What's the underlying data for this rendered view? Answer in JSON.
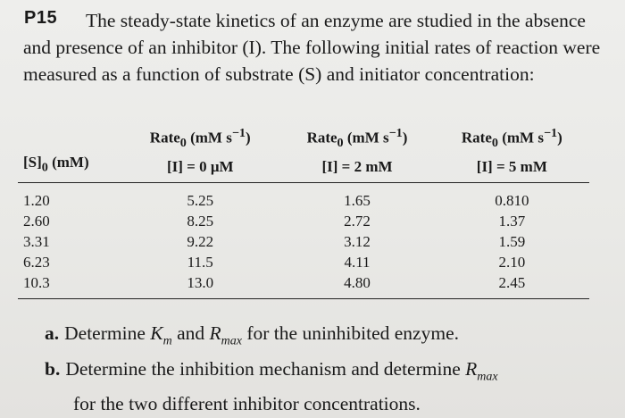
{
  "problem": {
    "number": "P15",
    "intro": "The steady-state kinetics of an enzyme are studied in the absence and presence of an inhibitor (I). The following initial rates of reaction were measured as a function of substrate (S) and initiator concentration:"
  },
  "table": {
    "rate_label": "Rate",
    "rate_sub": "0",
    "rate_unit": "(mM s",
    "rate_exp": "−1",
    "rate_close": ")",
    "substrate_col": {
      "prefix": "[S]",
      "sub": "0",
      "unit": " (mM)"
    },
    "conditions": [
      "[I] = 0 μM",
      "[I] = 2 mM",
      "[I] = 5 mM"
    ],
    "rows": [
      [
        "1.20",
        "5.25",
        "1.65",
        "0.810"
      ],
      [
        "2.60",
        "8.25",
        "2.72",
        "1.37"
      ],
      [
        "3.31",
        "9.22",
        "3.12",
        "1.59"
      ],
      [
        "6.23",
        "11.5",
        "4.11",
        "2.10"
      ],
      [
        "10.3",
        "13.0",
        "4.80",
        "2.45"
      ]
    ]
  },
  "questions": {
    "a": {
      "label": "a.",
      "t1": "Determine ",
      "v1": "K",
      "s1": "m",
      "t2": " and ",
      "v2": "R",
      "s2": "max",
      "t3": " for the uninhibited enzyme."
    },
    "b": {
      "label": "b.",
      "t1": "Determine the inhibition mechanism and determine ",
      "v1": "R",
      "s1": "max",
      "t2": "for the two different inhibitor concentrations."
    }
  }
}
